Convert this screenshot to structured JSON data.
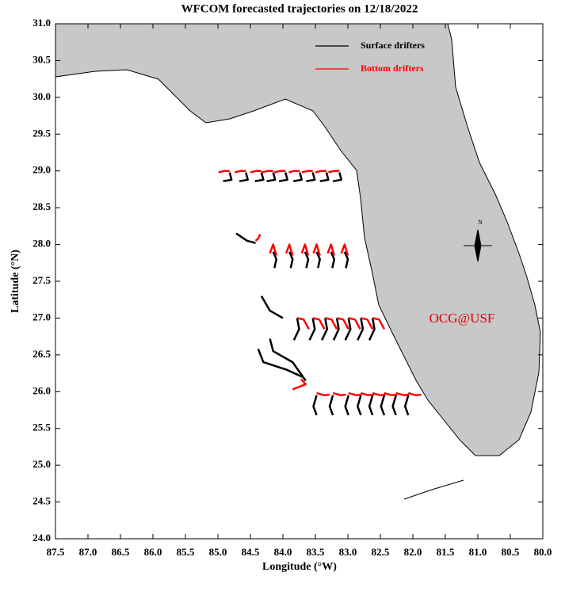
{
  "chart_data": {
    "type": "line",
    "title": "WFCOM forecasted trajectories on 12/18/2022",
    "xlabel": "Longitude (°W)",
    "ylabel": "Latitude (°N)",
    "annotation": "OCG@USF",
    "compass_label": "N",
    "legend": "top-right",
    "xlim": [
      87.5,
      80.0
    ],
    "ylim": [
      24.0,
      31.0
    ],
    "xticks": [
      87.5,
      {
        "value": 87,
        "label": "87.0"
      },
      86.5,
      {
        "value": 86,
        "label": "86.0"
      },
      85.5,
      {
        "value": 85,
        "label": "85.0"
      },
      84.5,
      {
        "value": 84,
        "label": "84.0"
      },
      83.5,
      {
        "value": 83,
        "label": "83.0"
      },
      82.5,
      {
        "value": 82,
        "label": "82.0"
      },
      81.5,
      {
        "value": 81,
        "label": "81.0"
      },
      80.5,
      {
        "value": 80,
        "label": "80.0"
      }
    ],
    "yticks": [
      {
        "value": 24,
        "label": "24.0"
      },
      24.5,
      {
        "value": 25,
        "label": "25.0"
      },
      25.5,
      {
        "value": 26,
        "label": "26.0"
      },
      26.5,
      {
        "value": 27,
        "label": "27.0"
      },
      27.5,
      {
        "value": 28,
        "label": "28.0"
      },
      28.5,
      {
        "value": 29,
        "label": "29.0"
      },
      29.5,
      {
        "value": 30,
        "label": "30.0"
      },
      30.5,
      {
        "value": 31,
        "label": "31.0"
      }
    ],
    "series": [
      {
        "name": "Surface drifters",
        "color": "#000000",
        "x": [
          84.82,
          84.79,
          84.92,
          null,
          84.57,
          84.54,
          84.67,
          null,
          84.33,
          84.3,
          84.43,
          null,
          84.15,
          84.12,
          84.25,
          null,
          83.96,
          83.93,
          84.06,
          null,
          83.74,
          83.71,
          83.84,
          null,
          83.54,
          83.51,
          83.64,
          null,
          83.33,
          83.3,
          83.43,
          null,
          83.13,
          83.1,
          83.23,
          null,
          84.72,
          84.55,
          84.42,
          null,
          84.15,
          84.1,
          84.13,
          null,
          83.9,
          83.85,
          83.88,
          null,
          83.66,
          83.61,
          83.64,
          null,
          83.48,
          83.43,
          83.46,
          null,
          83.26,
          83.21,
          83.24,
          null,
          83.05,
          83.0,
          83.03,
          null,
          84.33,
          84.2,
          84.0,
          null,
          83.78,
          83.75,
          83.83,
          null,
          83.54,
          83.51,
          83.59,
          null,
          83.35,
          83.32,
          83.4,
          null,
          83.17,
          83.14,
          83.22,
          null,
          82.99,
          82.96,
          83.04,
          null,
          82.8,
          82.77,
          82.85,
          null,
          82.62,
          82.59,
          82.67,
          null,
          84.38,
          84.3,
          83.95,
          83.7,
          null,
          84.2,
          84.15,
          83.85,
          83.65,
          null,
          83.48,
          83.53,
          83.48,
          null,
          83.23,
          83.28,
          83.23,
          null,
          82.99,
          83.04,
          82.99,
          null,
          82.8,
          82.85,
          82.8,
          null,
          82.62,
          82.67,
          82.62,
          null,
          82.44,
          82.49,
          82.44,
          null,
          82.26,
          82.31,
          82.26,
          null,
          82.07,
          82.12,
          82.07
        ],
        "values": [
          28.98,
          28.88,
          28.86,
          null,
          28.98,
          28.88,
          28.86,
          null,
          28.98,
          28.88,
          28.86,
          null,
          28.98,
          28.88,
          28.86,
          null,
          28.98,
          28.88,
          28.86,
          null,
          28.98,
          28.88,
          28.86,
          null,
          28.98,
          28.88,
          28.86,
          null,
          28.98,
          28.88,
          28.86,
          null,
          28.98,
          28.88,
          28.86,
          null,
          28.15,
          28.05,
          28.02,
          null,
          27.9,
          27.8,
          27.68,
          null,
          27.9,
          27.8,
          27.68,
          null,
          27.9,
          27.8,
          27.68,
          null,
          27.9,
          27.8,
          27.68,
          null,
          27.9,
          27.8,
          27.68,
          null,
          27.9,
          27.8,
          27.68,
          null,
          27.3,
          27.1,
          27.0,
          null,
          27.0,
          26.85,
          26.7,
          null,
          27.0,
          26.85,
          26.7,
          null,
          27.0,
          26.85,
          26.7,
          null,
          27.0,
          26.85,
          26.7,
          null,
          27.0,
          26.85,
          26.7,
          null,
          27.0,
          26.85,
          26.7,
          null,
          27.0,
          26.85,
          26.7,
          null,
          26.58,
          26.4,
          26.3,
          26.2,
          null,
          26.72,
          26.55,
          26.4,
          26.15,
          null,
          25.95,
          25.8,
          25.68,
          null,
          25.95,
          25.8,
          25.68,
          null,
          25.95,
          25.8,
          25.68,
          null,
          25.95,
          25.8,
          25.68,
          null,
          25.95,
          25.8,
          25.68,
          null,
          25.95,
          25.8,
          25.68,
          null,
          25.95,
          25.8,
          25.68,
          null,
          25.95,
          25.8,
          25.68
        ]
      },
      {
        "name": "Bottom drifters",
        "color": "#ff0000",
        "x": [
          84.82,
          84.9,
          84.99,
          null,
          84.57,
          84.65,
          84.74,
          null,
          84.33,
          84.41,
          84.5,
          null,
          84.15,
          84.23,
          84.32,
          null,
          83.96,
          84.04,
          84.13,
          null,
          83.74,
          83.82,
          83.91,
          null,
          83.54,
          83.62,
          83.71,
          null,
          83.33,
          83.41,
          83.5,
          null,
          83.13,
          83.21,
          83.3,
          null,
          84.35,
          84.38,
          84.42,
          null,
          84.2,
          84.15,
          84.1,
          null,
          83.95,
          83.9,
          83.85,
          null,
          83.71,
          83.66,
          83.61,
          null,
          83.53,
          83.48,
          83.43,
          null,
          83.31,
          83.26,
          83.21,
          null,
          83.1,
          83.05,
          83.0,
          null,
          83.78,
          83.68,
          83.6,
          null,
          83.54,
          83.44,
          83.36,
          null,
          83.35,
          83.25,
          83.17,
          null,
          83.17,
          83.07,
          82.99,
          null,
          82.99,
          82.89,
          82.81,
          null,
          82.8,
          82.7,
          82.62,
          null,
          82.62,
          82.52,
          82.44,
          null,
          83.72,
          83.65,
          83.85,
          null,
          83.48,
          83.36,
          83.28,
          null,
          83.23,
          83.11,
          83.03,
          null,
          82.99,
          82.87,
          82.79,
          null,
          82.8,
          82.68,
          82.6,
          null,
          82.62,
          82.5,
          82.42,
          null,
          82.44,
          82.32,
          82.24,
          null,
          82.26,
          82.14,
          82.06,
          null,
          82.07,
          81.95,
          81.87
        ],
        "values": [
          29.0,
          29.0,
          28.98,
          null,
          29.0,
          29.0,
          28.98,
          null,
          29.0,
          29.0,
          28.98,
          null,
          29.0,
          29.0,
          28.98,
          null,
          29.0,
          29.0,
          28.98,
          null,
          29.0,
          29.0,
          28.98,
          null,
          29.0,
          29.0,
          28.98,
          null,
          29.0,
          29.0,
          28.98,
          null,
          29.0,
          29.0,
          28.98,
          null,
          28.14,
          28.08,
          28.05,
          null,
          27.88,
          28.0,
          27.85,
          null,
          27.88,
          28.0,
          27.85,
          null,
          27.88,
          28.0,
          27.85,
          null,
          27.88,
          28.0,
          27.85,
          null,
          27.88,
          28.0,
          27.85,
          null,
          27.88,
          28.0,
          27.85,
          null,
          27.0,
          26.98,
          26.85,
          null,
          27.0,
          26.98,
          26.85,
          null,
          27.0,
          26.98,
          26.85,
          null,
          27.0,
          26.98,
          26.85,
          null,
          27.0,
          26.98,
          26.85,
          null,
          27.0,
          26.98,
          26.85,
          null,
          27.0,
          26.98,
          26.85,
          null,
          26.17,
          26.1,
          26.03,
          null,
          25.98,
          25.95,
          25.96,
          null,
          25.98,
          25.95,
          25.96,
          null,
          25.98,
          25.95,
          25.96,
          null,
          25.98,
          25.95,
          25.96,
          null,
          25.98,
          25.95,
          25.96,
          null,
          25.98,
          25.95,
          25.96,
          null,
          25.98,
          25.95,
          25.96,
          null,
          25.98,
          25.95,
          25.96
        ]
      }
    ]
  }
}
